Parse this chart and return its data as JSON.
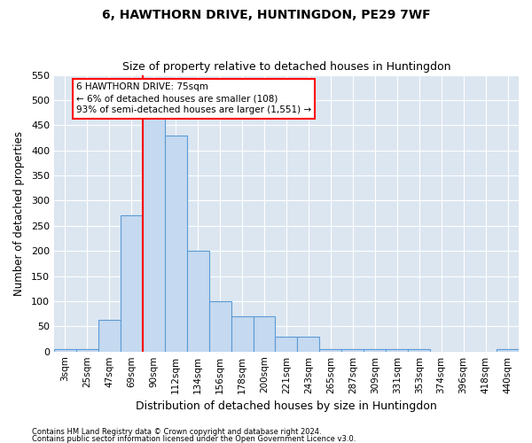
{
  "title": "6, HAWTHORN DRIVE, HUNTINGDON, PE29 7WF",
  "subtitle": "Size of property relative to detached houses in Huntingdon",
  "xlabel": "Distribution of detached houses by size in Huntingdon",
  "ylabel": "Number of detached properties",
  "bar_color": "#c5d9f0",
  "bar_edge_color": "#5b9bd5",
  "background_color": "#dce6f1",
  "grid_color": "#ffffff",
  "categories": [
    "3sqm",
    "25sqm",
    "47sqm",
    "69sqm",
    "90sqm",
    "112sqm",
    "134sqm",
    "156sqm",
    "178sqm",
    "200sqm",
    "221sqm",
    "243sqm",
    "265sqm",
    "287sqm",
    "309sqm",
    "331sqm",
    "353sqm",
    "374sqm",
    "396sqm",
    "418sqm",
    "440sqm"
  ],
  "values": [
    5,
    5,
    62,
    270,
    510,
    430,
    200,
    100,
    70,
    70,
    30,
    30,
    5,
    5,
    5,
    5,
    5,
    0,
    0,
    0,
    5
  ],
  "ylim": [
    0,
    550
  ],
  "yticks": [
    0,
    50,
    100,
    150,
    200,
    250,
    300,
    350,
    400,
    450,
    500,
    550
  ],
  "vline_position": 4.0,
  "annotation_text": "6 HAWTHORN DRIVE: 75sqm\n← 6% of detached houses are smaller (108)\n93% of semi-detached houses are larger (1,551) →",
  "footnote1": "Contains HM Land Registry data © Crown copyright and database right 2024.",
  "footnote2": "Contains public sector information licensed under the Open Government Licence v3.0."
}
